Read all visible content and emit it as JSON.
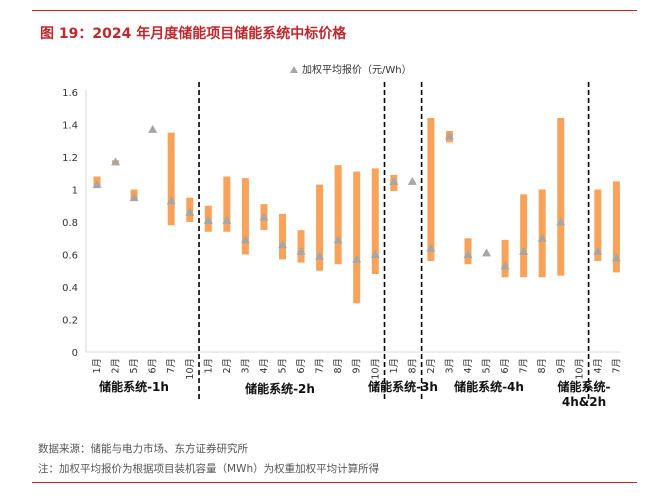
{
  "title": "图 19：2024 年月度储能项目储能系统中标价格",
  "source": "数据来源：储能与电力市场、东方证券研究所",
  "note": "注：加权平均报价为根据项目装机容量（MWh）为权重加权平均计算所得",
  "colors": {
    "bar": "#f8a25a",
    "marker": "#a6a6a6",
    "title": "#c0282d",
    "divider": "#000000"
  },
  "chart_data": {
    "type": "bar",
    "subtype": "floating-range with marker",
    "legend": {
      "label": "加权平均报价（元/Wh）",
      "position": "top-center"
    },
    "ylim": [
      0,
      1.6
    ],
    "yticks": [
      "0",
      "0.2",
      "0.4",
      "0.6",
      "0.8",
      "1",
      "1.2",
      "1.4",
      "1.6"
    ],
    "ytick_values": [
      0,
      0.2,
      0.4,
      0.6,
      0.8,
      1,
      1.2,
      1.4,
      1.6
    ],
    "grid": false,
    "groups": [
      {
        "label": "储能系统-1h",
        "months": [
          "1月",
          "2月",
          "5月",
          "6月",
          "7月",
          "10月"
        ],
        "low": [
          1.01,
          1.16,
          0.93,
          null,
          0.78,
          0.8
        ],
        "high": [
          1.08,
          1.18,
          1.0,
          null,
          1.35,
          0.95
        ],
        "avg": [
          1.03,
          1.17,
          0.95,
          1.37,
          0.93,
          0.86
        ]
      },
      {
        "label": "储能系统-2h",
        "months": [
          "1月",
          "2月",
          "3月",
          "4月",
          "5月",
          "6月",
          "7月",
          "8月",
          "9月",
          "10月"
        ],
        "low": [
          0.74,
          0.74,
          0.6,
          0.75,
          0.57,
          0.55,
          0.5,
          0.54,
          0.3,
          0.48
        ],
        "high": [
          0.9,
          1.08,
          1.07,
          0.91,
          0.85,
          0.75,
          1.03,
          1.15,
          1.11,
          1.13
        ],
        "avg": [
          0.81,
          0.81,
          0.69,
          0.83,
          0.66,
          0.62,
          0.59,
          0.69,
          0.57,
          0.6
        ]
      },
      {
        "label": "储能系统-3h",
        "months": [
          "1月",
          "8月"
        ],
        "low": [
          0.99,
          null
        ],
        "high": [
          1.09,
          null
        ],
        "avg": [
          1.05,
          1.05
        ]
      },
      {
        "label": "储能系统-4h",
        "months": [
          "2月",
          "3月",
          "4月",
          "5月",
          "6月",
          "7月",
          "8月",
          "9月",
          "10月"
        ],
        "low": [
          0.56,
          1.29,
          0.54,
          null,
          0.46,
          0.46,
          0.46,
          0.47,
          null
        ],
        "high": [
          1.44,
          1.36,
          0.7,
          null,
          0.69,
          0.97,
          1.0,
          1.44,
          null
        ],
        "avg": [
          0.64,
          1.33,
          0.6,
          0.61,
          0.53,
          0.62,
          0.7,
          0.8,
          null
        ]
      },
      {
        "label": "储能系统-4h&2h",
        "months": [
          "4月",
          "7月"
        ],
        "low": [
          0.56,
          0.49
        ],
        "high": [
          1.0,
          1.05
        ],
        "avg": [
          0.62,
          0.58
        ]
      }
    ]
  }
}
